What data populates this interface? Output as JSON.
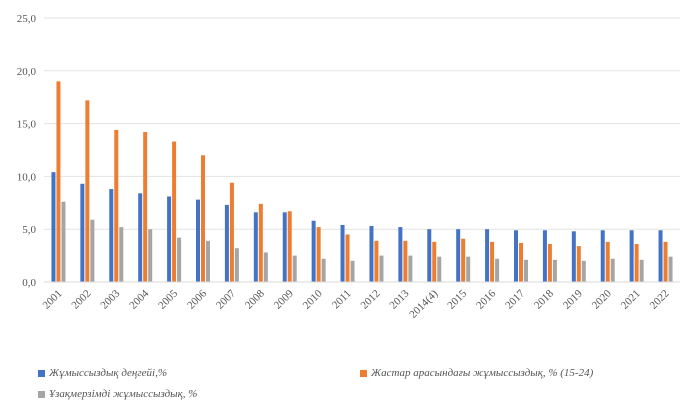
{
  "chart_data": {
    "type": "bar",
    "categories": [
      "2001",
      "2002",
      "2003",
      "2004",
      "2005",
      "2006",
      "2007",
      "2008",
      "2009",
      "2010",
      "2011",
      "2012",
      "2013",
      "2014(4)",
      "2015",
      "2016",
      "2017",
      "2018",
      "2019",
      "2020",
      "2021",
      "2022"
    ],
    "series": [
      {
        "name": "Жұмыссыздық деңгейі,%",
        "color": "#4472c4",
        "values": [
          10.4,
          9.3,
          8.8,
          8.4,
          8.1,
          7.8,
          7.3,
          6.6,
          6.6,
          5.8,
          5.4,
          5.3,
          5.2,
          5.0,
          5.0,
          5.0,
          4.9,
          4.9,
          4.8,
          4.9,
          4.9,
          4.9
        ]
      },
      {
        "name": "Жастар арасындағы жұмыссыздық, % (15-24)",
        "color": "#ed7d31",
        "values": [
          19.0,
          17.2,
          14.4,
          14.2,
          13.3,
          12.0,
          9.4,
          7.4,
          6.7,
          5.2,
          4.5,
          3.9,
          3.9,
          3.8,
          4.1,
          3.8,
          3.7,
          3.6,
          3.4,
          3.8,
          3.6,
          3.8
        ]
      },
      {
        "name": "Ұзақмерзімді жұмыссыздық, %",
        "color": "#a5a5a5",
        "values": [
          7.6,
          5.9,
          5.2,
          5.0,
          4.2,
          3.9,
          3.2,
          2.8,
          2.5,
          2.2,
          2.0,
          2.5,
          2.5,
          2.4,
          2.4,
          2.2,
          2.1,
          2.1,
          2.0,
          2.2,
          2.1,
          2.4
        ]
      }
    ],
    "yticks": [
      "0,0",
      "5,0",
      "10,0",
      "15,0",
      "20,0",
      "25,0"
    ],
    "ylim": [
      0,
      25
    ],
    "grid": true,
    "legend_position": "bottom"
  }
}
